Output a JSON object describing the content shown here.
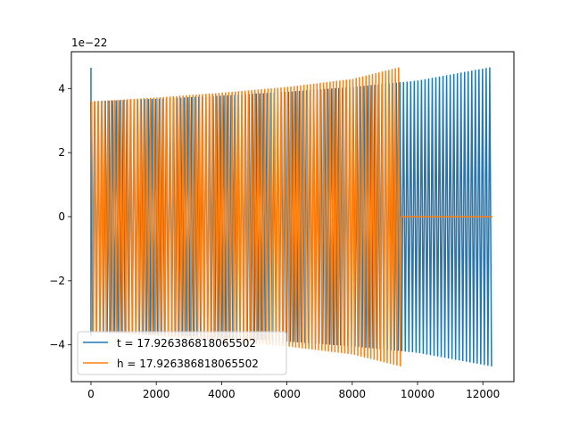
{
  "chart_data": {
    "type": "line",
    "offset_label": "1e−22",
    "xlim": [
      -600,
      12950
    ],
    "ylim": [
      -5.15,
      5.15
    ],
    "xticks": [
      0,
      2000,
      4000,
      6000,
      8000,
      10000,
      12000
    ],
    "xtick_labels": [
      "0",
      "2000",
      "4000",
      "6000",
      "8000",
      "10000",
      "12000"
    ],
    "yticks": [
      -4,
      -2,
      0,
      2,
      4
    ],
    "ytick_labels": [
      "−4",
      "−2",
      "0",
      "2",
      "4"
    ],
    "grid": false,
    "legend_position": "lower-left",
    "series": [
      {
        "name": "t = 17.926386818065502",
        "color": "#1f77b4",
        "x_start": 0,
        "x_end": 12300,
        "envelope": [
          [
            0,
            3.6
          ],
          [
            2000,
            3.68
          ],
          [
            4000,
            3.78
          ],
          [
            6000,
            3.9
          ],
          [
            8000,
            4.05
          ],
          [
            10000,
            4.25
          ],
          [
            12300,
            4.68
          ]
        ],
        "spike": [
          0,
          4.65
        ]
      },
      {
        "name": "h = 17.926386818065502",
        "color": "#ff7f0e",
        "x_start": 0,
        "x_end": 9500,
        "flat_end": 12300,
        "envelope": [
          [
            0,
            3.6
          ],
          [
            2000,
            3.72
          ],
          [
            4000,
            3.87
          ],
          [
            6000,
            4.05
          ],
          [
            8000,
            4.3
          ],
          [
            9500,
            4.68
          ]
        ]
      }
    ]
  }
}
